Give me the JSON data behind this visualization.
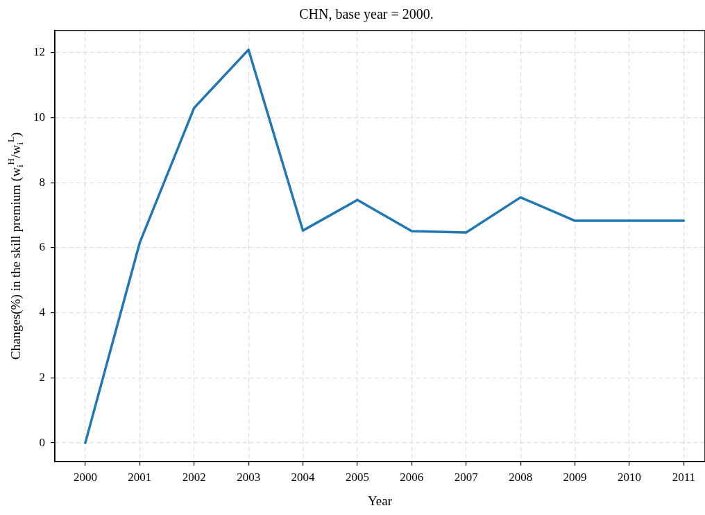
{
  "chart_data": {
    "type": "line",
    "title": "CHN, base year = 2000.",
    "xlabel": "Year",
    "ylabel": "Changes(%) in the skill premium (w$_{i}$$^{H}$/w$_{i}$$^{L}$)",
    "x": [
      2000,
      2001,
      2002,
      2003,
      2004,
      2005,
      2006,
      2007,
      2008,
      2009,
      2010,
      2011
    ],
    "series": [
      {
        "color": "#1f77b4",
        "values": [
          0,
          6.15,
          10.3,
          12.09,
          6.53,
          7.47,
          6.51,
          6.47,
          7.55,
          6.83,
          6.83,
          6.83
        ]
      }
    ],
    "xlim": [
      1999.44,
      2011.39
    ],
    "xticks": [
      2000,
      2001,
      2002,
      2003,
      2004,
      2005,
      2006,
      2007,
      2008,
      2009,
      2010,
      2011
    ],
    "ylim": [
      -0.57,
      12.68
    ],
    "yticks": [
      0,
      2,
      4,
      6,
      8,
      10,
      12
    ],
    "grid": true,
    "legend": false,
    "marker": "none",
    "line_style": "solid"
  }
}
